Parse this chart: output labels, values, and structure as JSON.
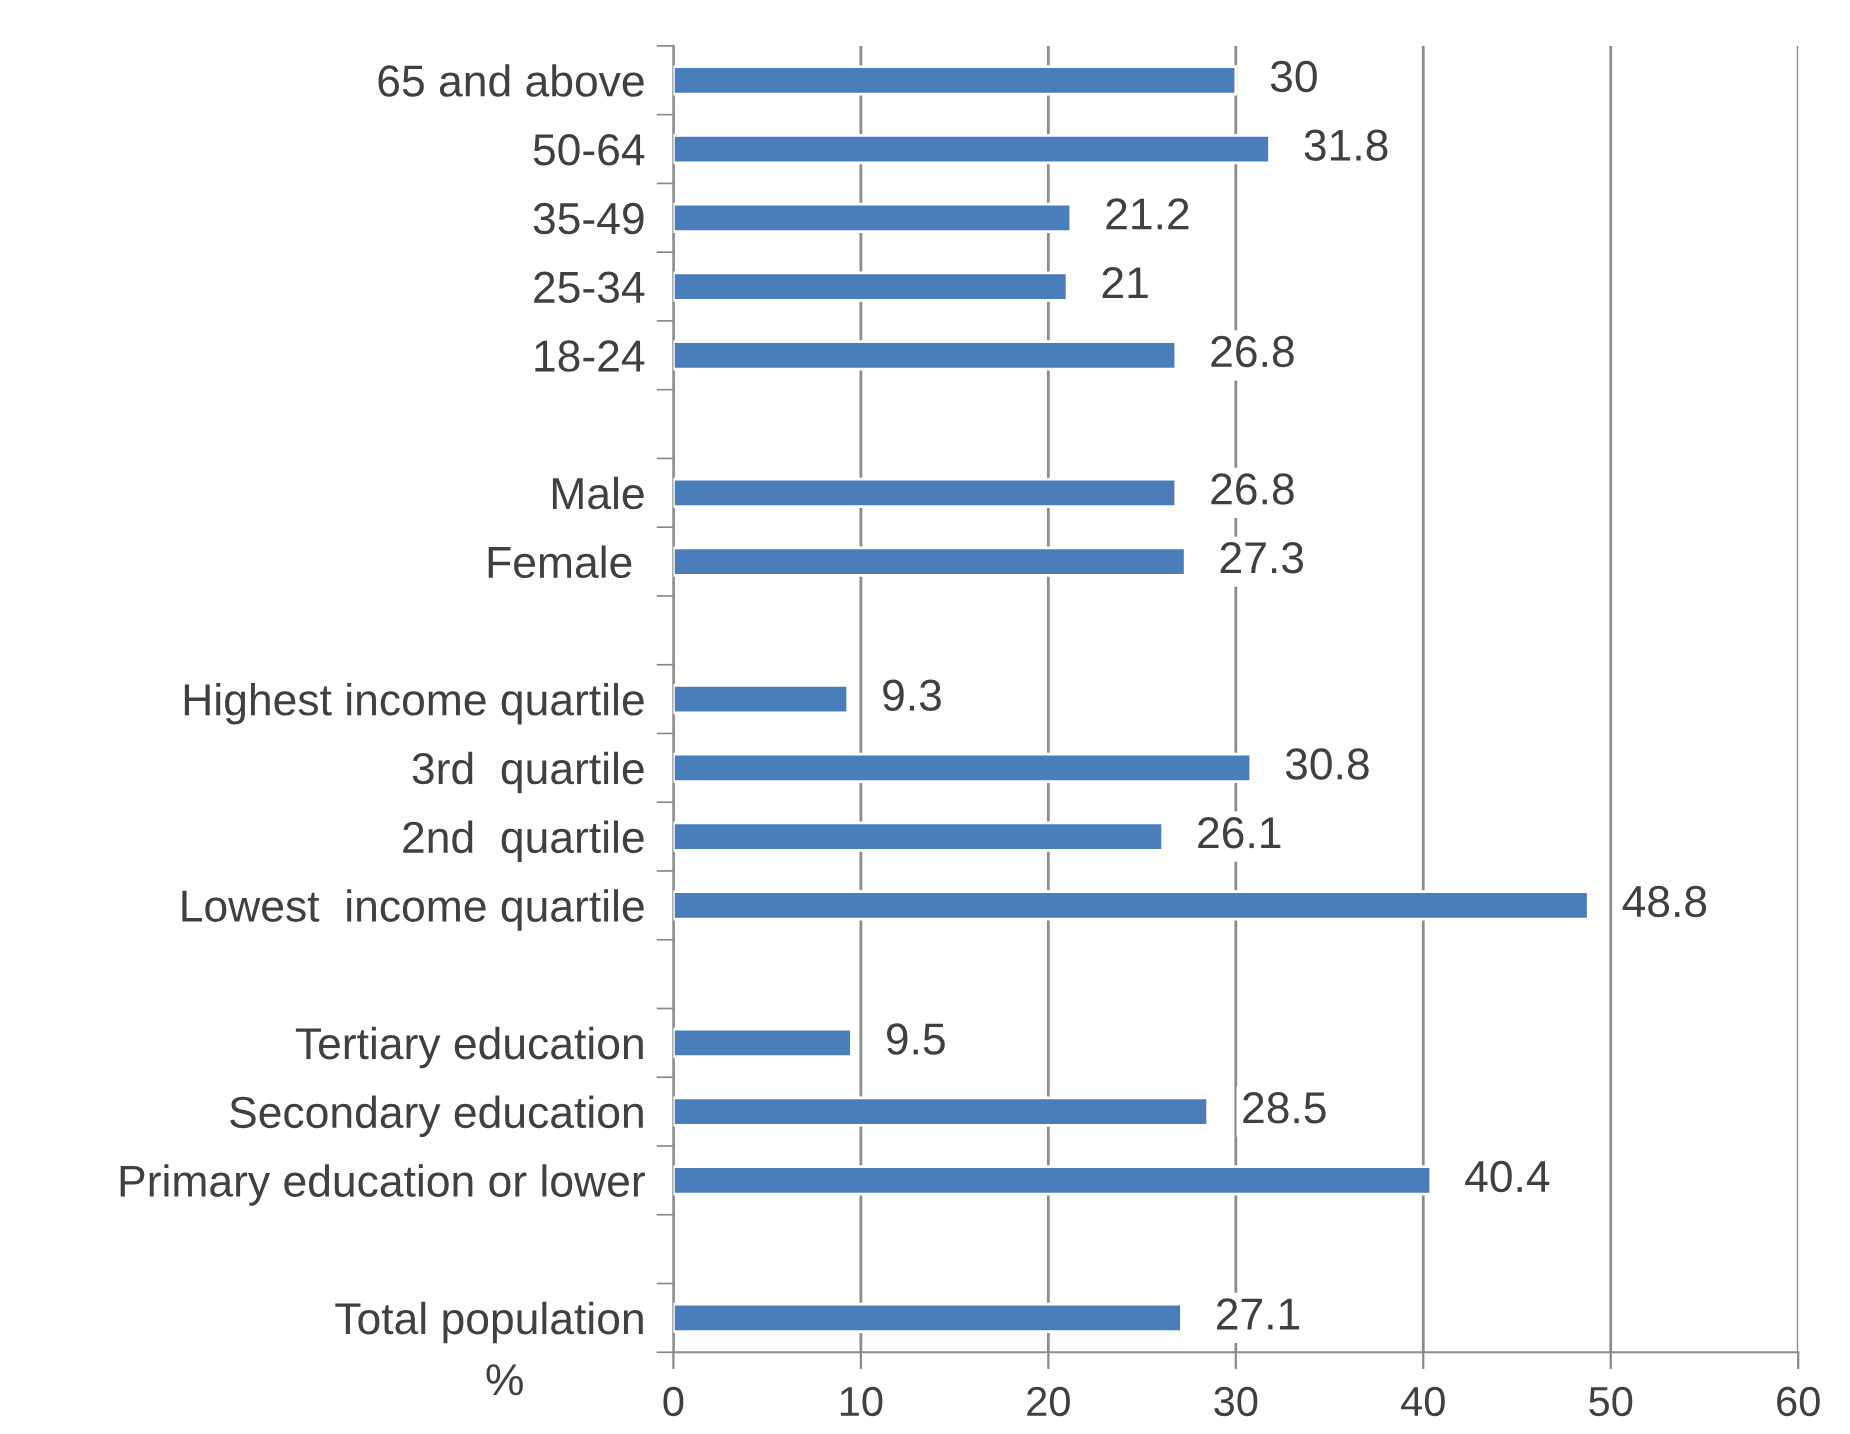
{
  "chart_data": {
    "type": "bar",
    "orientation": "horizontal",
    "xlabel": "%",
    "categories": [
      "65 and above",
      "50-64",
      "35-49",
      "25-34",
      "18-24",
      null,
      "Male",
      "Female ",
      null,
      "Highest income quartile",
      "3rd  quartile",
      "2nd  quartile",
      "Lowest  income quartile",
      null,
      "Tertiary education",
      "Secondary education",
      "Primary education or lower",
      null,
      "Total population"
    ],
    "values": [
      30,
      31.8,
      21.2,
      21,
      26.8,
      null,
      26.8,
      27.3,
      null,
      9.3,
      30.8,
      26.1,
      48.8,
      null,
      9.5,
      28.5,
      40.4,
      null,
      27.1
    ],
    "color": "#4a7ebb",
    "xlim": [
      0,
      60
    ],
    "xticks": [
      0,
      10,
      20,
      30,
      40,
      50,
      60
    ],
    "grid": "x",
    "data_labels": true
  }
}
